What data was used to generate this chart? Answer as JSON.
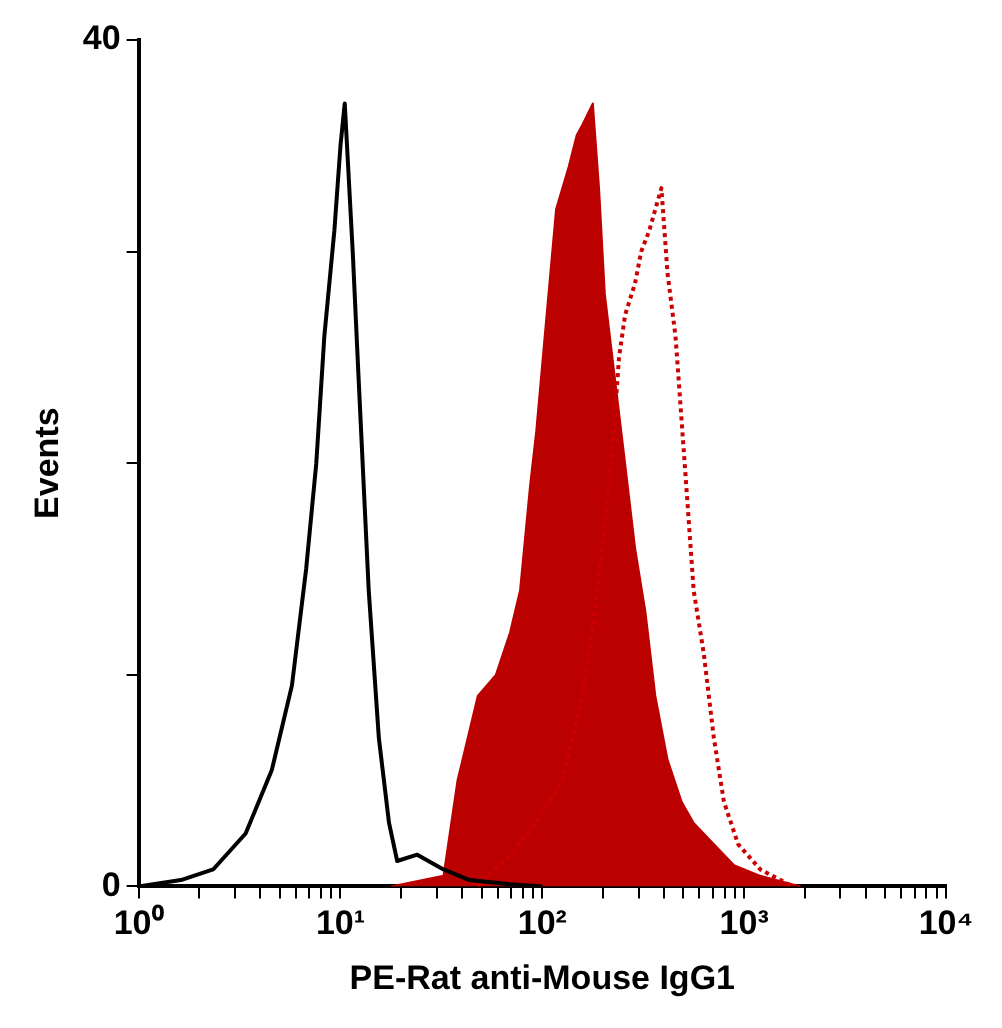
{
  "chart_data": {
    "type": "line",
    "xlabel": "PE-Rat anti-Mouse IgG1",
    "ylabel": "Events",
    "log": "x",
    "grid": false,
    "legend": false,
    "xlim": [
      1,
      10000
    ],
    "ylim": [
      0,
      40
    ],
    "xticks": [
      {
        "value": 1,
        "label": "10⁰"
      },
      {
        "value": 2,
        "label": null
      },
      {
        "value": 3,
        "label": null
      },
      {
        "value": 4,
        "label": null
      },
      {
        "value": 5,
        "label": null
      },
      {
        "value": 6,
        "label": null
      },
      {
        "value": 7,
        "label": null
      },
      {
        "value": 8,
        "label": null
      },
      {
        "value": 9,
        "label": null
      },
      {
        "value": 10,
        "label": "10¹"
      },
      {
        "value": 20,
        "label": null
      },
      {
        "value": 30,
        "label": null
      },
      {
        "value": 40,
        "label": null
      },
      {
        "value": 50,
        "label": null
      },
      {
        "value": 60,
        "label": null
      },
      {
        "value": 70,
        "label": null
      },
      {
        "value": 80,
        "label": null
      },
      {
        "value": 90,
        "label": null
      },
      {
        "value": 100,
        "label": "10²"
      },
      {
        "value": 200,
        "label": null
      },
      {
        "value": 300,
        "label": null
      },
      {
        "value": 400,
        "label": null
      },
      {
        "value": 500,
        "label": null
      },
      {
        "value": 600,
        "label": null
      },
      {
        "value": 700,
        "label": null
      },
      {
        "value": 800,
        "label": null
      },
      {
        "value": 900,
        "label": null
      },
      {
        "value": 1000,
        "label": "10³"
      },
      {
        "value": 2000,
        "label": null
      },
      {
        "value": 3000,
        "label": null
      },
      {
        "value": 4000,
        "label": null
      },
      {
        "value": 5000,
        "label": null
      },
      {
        "value": 6000,
        "label": null
      },
      {
        "value": 7000,
        "label": null
      },
      {
        "value": 8000,
        "label": null
      },
      {
        "value": 9000,
        "label": null
      },
      {
        "value": 10000,
        "label": "10⁴"
      }
    ],
    "yticks": [
      0,
      {
        "value": 10,
        "label": null
      },
      {
        "value": 20,
        "label": null
      },
      {
        "value": 30,
        "label": null
      },
      40
    ],
    "series": [
      {
        "type": "line",
        "color": "#000000",
        "line_style": "solid",
        "x": [
          1,
          1.62,
          2.34,
          3.39,
          4.57,
          5.75,
          6.76,
          7.59,
          8.32,
          9.33,
          10,
          10.5,
          11.5,
          12.3,
          13.8,
          15.5,
          17.4,
          19.1,
          24,
          32.4,
          43.6,
          69.2,
          100
        ],
        "values": [
          0,
          0.3,
          0.8,
          2.5,
          5.5,
          9.5,
          15,
          20,
          26,
          31,
          35,
          37,
          30,
          24,
          14,
          7,
          3,
          1.2,
          1.5,
          0.8,
          0.3,
          0.1,
          0
        ]
      },
      {
        "type": "area",
        "color": "#bb0000",
        "x": [
          17.8,
          32.4,
          38,
          47.9,
          58.9,
          69.2,
          77.6,
          87.1,
          93.3,
          105,
          117,
          135,
          148,
          158,
          178,
          191,
          204,
          229,
          257,
          288,
          324,
          363,
          417,
          490,
          562,
          708,
          891,
          1202,
          1905
        ],
        "values": [
          0,
          0.5,
          5,
          9,
          10,
          12,
          14,
          19,
          21.5,
          27,
          32,
          34,
          35.5,
          36,
          37,
          33,
          28,
          24,
          20,
          16,
          13,
          9,
          6,
          4,
          3,
          2,
          1,
          0.5,
          0
        ]
      },
      {
        "type": "line",
        "color": "#cc0000",
        "line_style": "dotted",
        "x": [
          47.9,
          69.2,
          93.3,
          126,
          158,
          182,
          204,
          224,
          240,
          257,
          288,
          309,
          339,
          363,
          389,
          417,
          457,
          490,
          525,
          562,
          631,
          708,
          794,
          933,
          1202,
          1738
        ],
        "values": [
          0,
          1.5,
          3,
          5,
          9,
          13,
          17,
          21,
          25,
          27,
          28.5,
          30,
          31,
          32,
          33,
          29,
          26,
          22,
          18,
          14,
          11,
          7,
          4,
          2,
          0.8,
          0
        ]
      }
    ]
  }
}
